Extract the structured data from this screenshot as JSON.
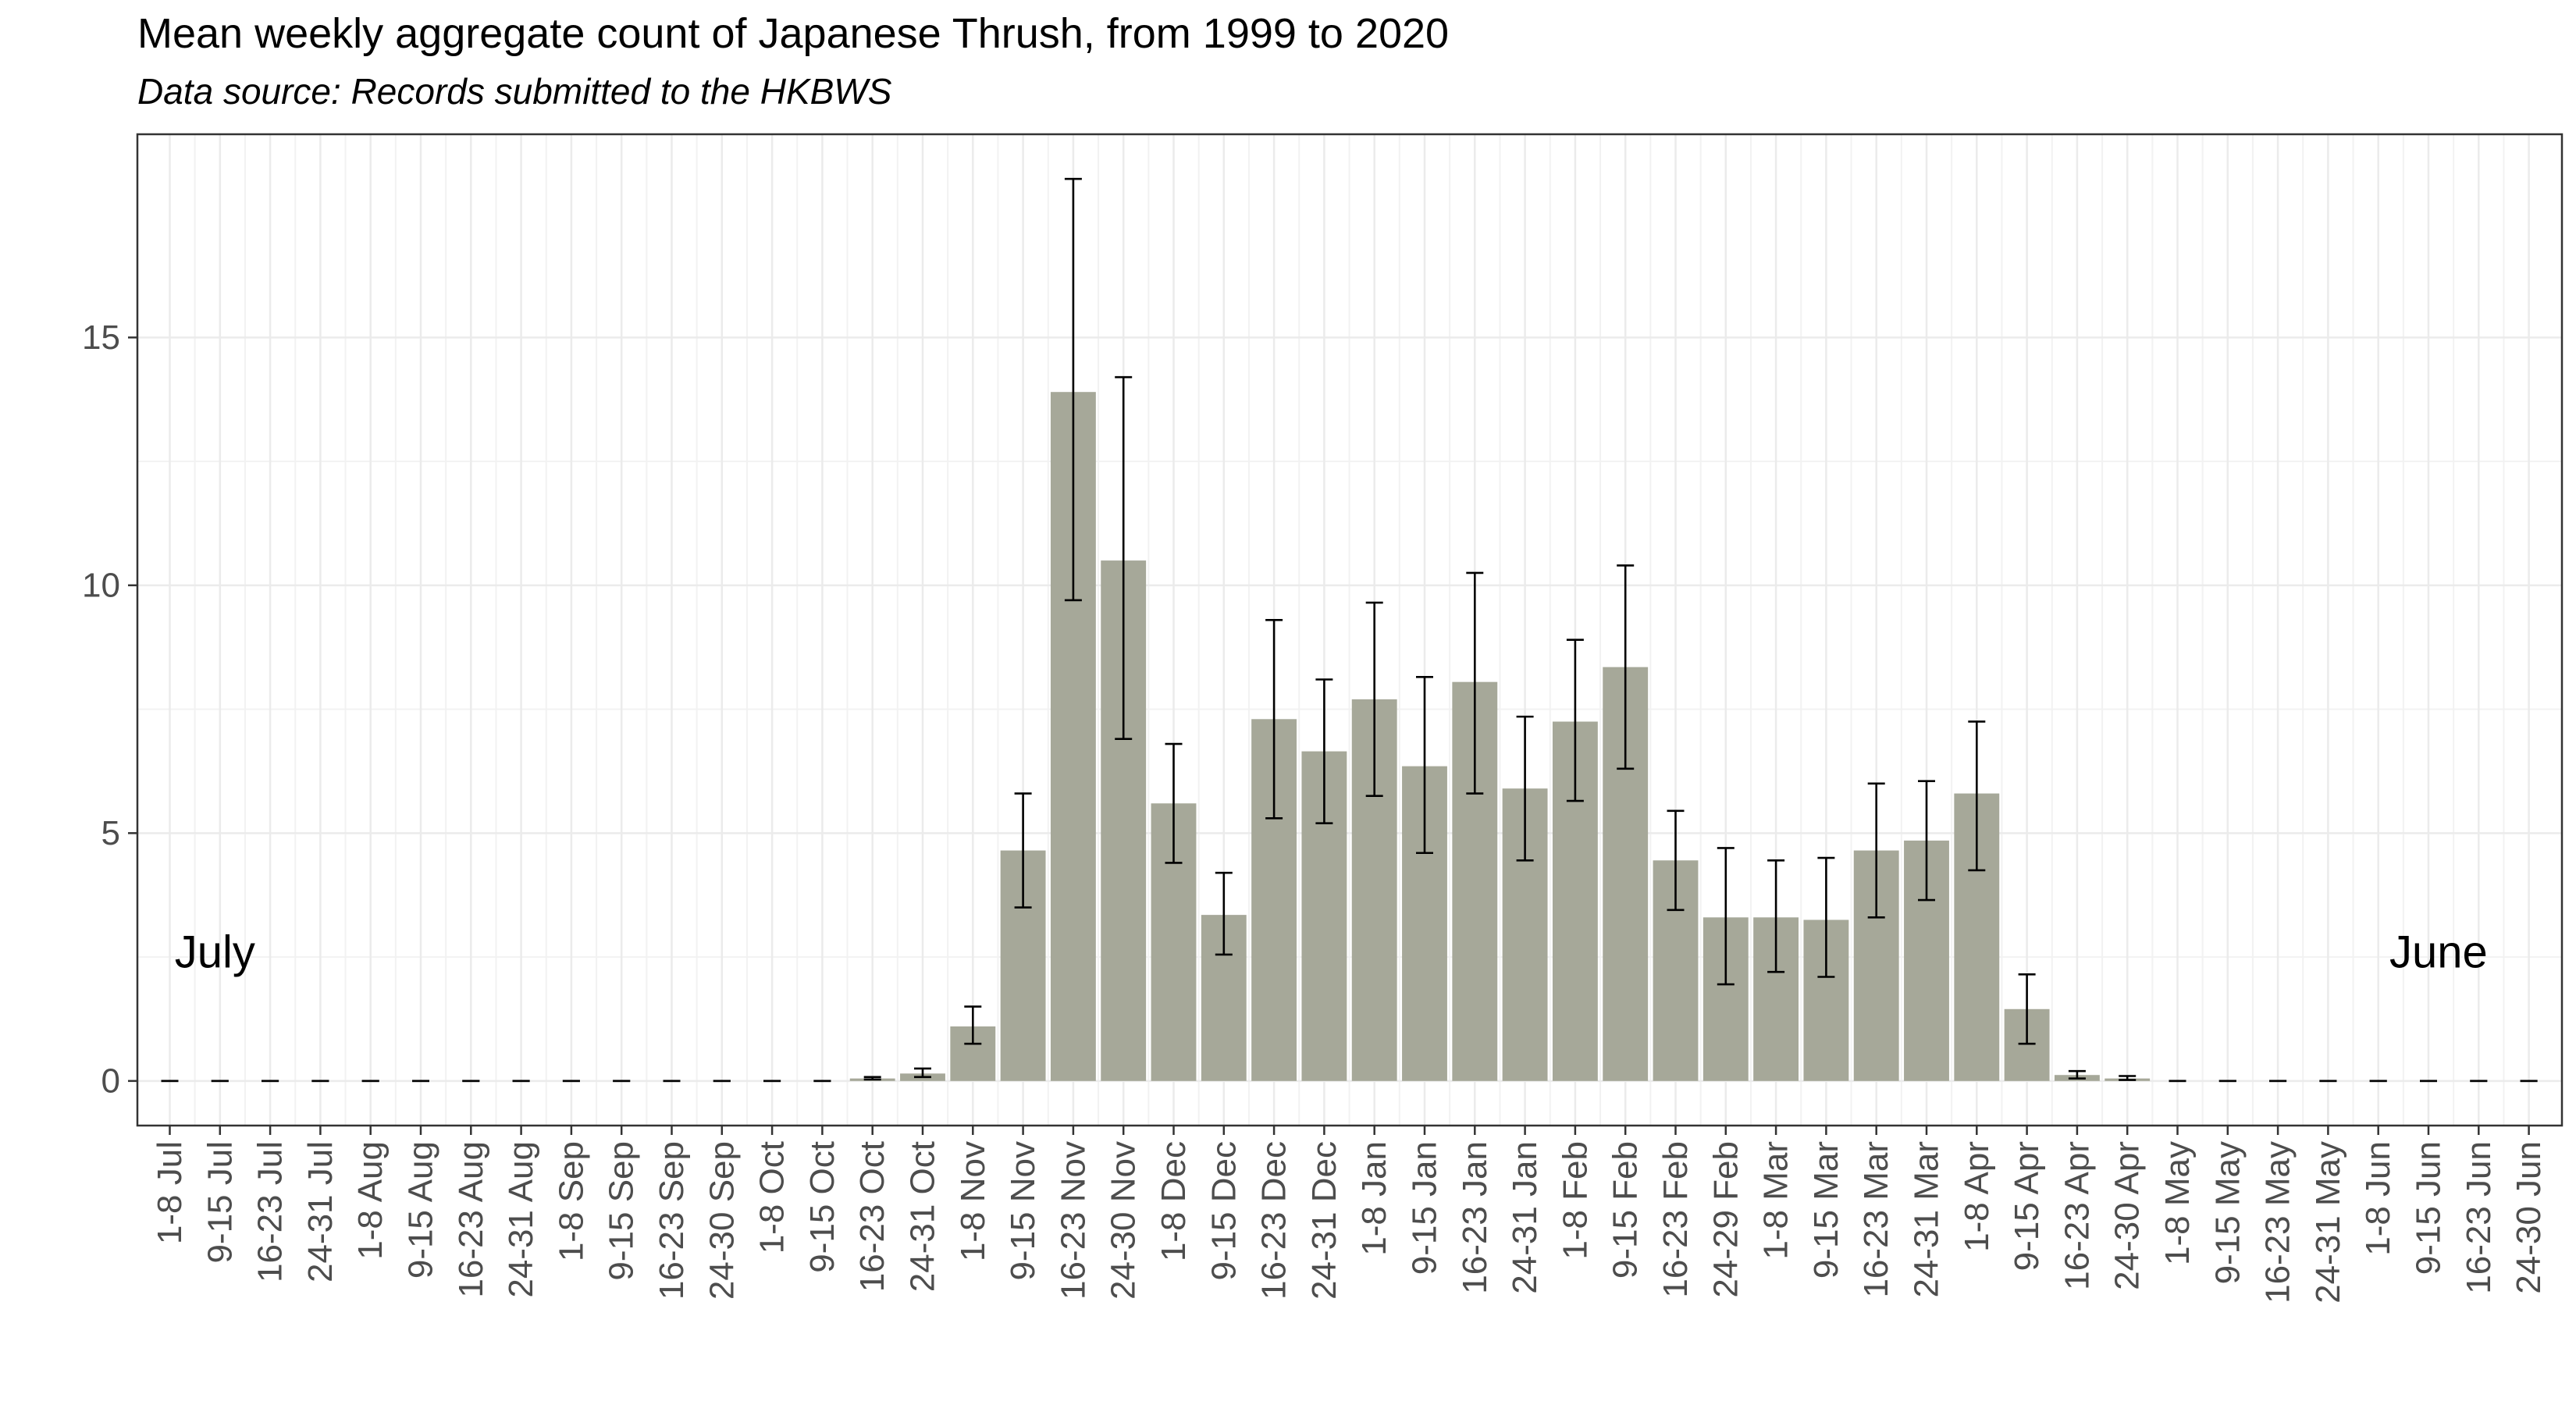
{
  "chart_data": {
    "type": "bar",
    "title": "Mean weekly aggregate count of Japanese Thrush, from 1999 to 2020",
    "subtitle": "Data source: Records submitted to the HKBWS",
    "xlabel": "",
    "ylabel": "",
    "ylim": [
      -0.9,
      19.1
    ],
    "yticks": [
      0,
      5,
      10,
      15
    ],
    "grid": true,
    "bar_color": "#a6a899",
    "categories": [
      "1-8 Jul",
      "9-15 Jul",
      "16-23 Jul",
      "24-31 Jul",
      "1-8 Aug",
      "9-15 Aug",
      "16-23 Aug",
      "24-31 Aug",
      "1-8 Sep",
      "9-15 Sep",
      "16-23 Sep",
      "24-30 Sep",
      "1-8 Oct",
      "9-15 Oct",
      "16-23 Oct",
      "24-31 Oct",
      "1-8 Nov",
      "9-15 Nov",
      "16-23 Nov",
      "24-30 Nov",
      "1-8 Dec",
      "9-15 Dec",
      "16-23 Dec",
      "24-31 Dec",
      "1-8 Jan",
      "9-15 Jan",
      "16-23 Jan",
      "24-31 Jan",
      "1-8 Feb",
      "9-15 Feb",
      "16-23 Feb",
      "24-29 Feb",
      "1-8 Mar",
      "9-15 Mar",
      "16-23 Mar",
      "24-31 Mar",
      "1-8 Apr",
      "9-15 Apr",
      "16-23 Apr",
      "24-30 Apr",
      "1-8 May",
      "9-15 May",
      "16-23 May",
      "24-31 May",
      "1-8 Jun",
      "9-15 Jun",
      "16-23 Jun",
      "24-30 Jun"
    ],
    "values": [
      0,
      0,
      0,
      0,
      0,
      0,
      0,
      0,
      0,
      0,
      0,
      0,
      0,
      0,
      0.05,
      0.15,
      1.1,
      4.65,
      13.9,
      10.5,
      5.6,
      3.35,
      7.3,
      6.65,
      7.7,
      6.35,
      8.05,
      5.9,
      7.25,
      8.35,
      4.45,
      3.3,
      3.3,
      3.25,
      4.65,
      4.85,
      5.8,
      1.45,
      0.12,
      0.05,
      0,
      0,
      0,
      0,
      0,
      0,
      0,
      0
    ],
    "err_low": [
      0,
      0,
      0,
      0,
      0,
      0,
      0,
      0,
      0,
      0,
      0,
      0,
      0,
      0,
      0.03,
      0.08,
      0.75,
      3.5,
      9.7,
      6.9,
      4.4,
      2.55,
      5.3,
      5.2,
      5.75,
      4.6,
      5.8,
      4.45,
      5.65,
      6.3,
      3.45,
      1.95,
      2.2,
      2.1,
      3.3,
      3.65,
      4.25,
      0.75,
      0.05,
      0.02,
      0,
      0,
      0,
      0,
      0,
      0,
      0,
      0
    ],
    "err_high": [
      0,
      0,
      0,
      0,
      0,
      0,
      0,
      0,
      0,
      0,
      0,
      0,
      0,
      0,
      0.08,
      0.25,
      1.5,
      5.8,
      18.2,
      14.2,
      6.8,
      4.2,
      9.3,
      8.1,
      9.65,
      8.15,
      10.25,
      7.35,
      8.9,
      10.4,
      5.45,
      4.7,
      4.45,
      4.5,
      6.0,
      6.05,
      7.25,
      2.15,
      0.2,
      0.1,
      0,
      0,
      0,
      0,
      0,
      0,
      0,
      0
    ],
    "annotations": [
      {
        "text": "July",
        "x_index": 0.9,
        "y": 2.6
      },
      {
        "text": "June",
        "x_index": 45.2,
        "y": 2.6
      }
    ]
  }
}
